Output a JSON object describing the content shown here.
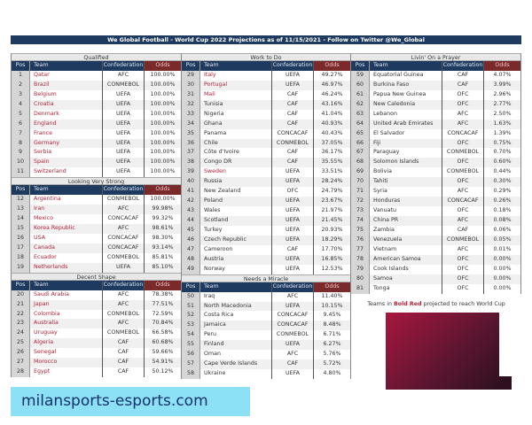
{
  "title": "We Global Football - World Cup 2022 Projections as of 11/15/2021 - Follow on Twitter @We_Global",
  "columns": {
    "pos": "Pos",
    "team": "Team",
    "confederation": "Confederation",
    "odds": "Odds"
  },
  "colors": {
    "header": "#1f3a5f",
    "odds_header": "#7a2a2a",
    "projected_team": "#b3233a"
  },
  "legend": {
    "prefix": "Teams in ",
    "highlight": "Bold Red",
    "suffix": " projected to reach World Cup"
  },
  "watermark": "milansports-esports.com",
  "panels": [
    [
      {
        "title": "Qualified",
        "rows": [
          [
            1,
            "Qatar",
            "AFC",
            "100.00%",
            true
          ],
          [
            2,
            "Brazil",
            "CONMEBOL",
            "100.00%",
            true
          ],
          [
            3,
            "Belgium",
            "UEFA",
            "100.00%",
            true
          ],
          [
            4,
            "Croatia",
            "UEFA",
            "100.00%",
            true
          ],
          [
            5,
            "Denmark",
            "UEFA",
            "100.00%",
            true
          ],
          [
            6,
            "England",
            "UEFA",
            "100.00%",
            true
          ],
          [
            7,
            "France",
            "UEFA",
            "100.00%",
            true
          ],
          [
            8,
            "Germany",
            "UEFA",
            "100.00%",
            true
          ],
          [
            9,
            "Serbia",
            "UEFA",
            "100.00%",
            true
          ],
          [
            10,
            "Spain",
            "UEFA",
            "100.00%",
            true
          ],
          [
            11,
            "Switzerland",
            "UEFA",
            "100.00%",
            true
          ]
        ]
      },
      {
        "title": "Looking Very Strong",
        "rows": [
          [
            12,
            "Argentina",
            "CONMEBOL",
            "100.00%",
            true
          ],
          [
            13,
            "Iran",
            "AFC",
            "99.98%",
            true
          ],
          [
            14,
            "Mexico",
            "CONCACAF",
            "99.32%",
            true
          ],
          [
            15,
            "Korea Republic",
            "AFC",
            "98.61%",
            true
          ],
          [
            16,
            "USA",
            "CONCACAF",
            "98.30%",
            true
          ],
          [
            17,
            "Canada",
            "CONCACAF",
            "93.14%",
            true
          ],
          [
            18,
            "Ecuador",
            "CONMEBOL",
            "85.81%",
            true
          ],
          [
            19,
            "Netherlands",
            "UEFA",
            "85.10%",
            true
          ]
        ]
      },
      {
        "title": "Decent Shape",
        "rows": [
          [
            20,
            "Saudi Arabia",
            "AFC",
            "78.38%",
            true
          ],
          [
            21,
            "Japan",
            "AFC",
            "77.51%",
            true
          ],
          [
            22,
            "Colombia",
            "CONMEBOL",
            "72.59%",
            true
          ],
          [
            23,
            "Australia",
            "AFC",
            "70.84%",
            true
          ],
          [
            24,
            "Uruguay",
            "CONMEBOL",
            "66.58%",
            true
          ],
          [
            25,
            "Algeria",
            "CAF",
            "60.68%",
            true
          ],
          [
            26,
            "Senegal",
            "CAF",
            "59.66%",
            true
          ],
          [
            27,
            "Morocco",
            "CAF",
            "54.91%",
            true
          ],
          [
            28,
            "Egypt",
            "CAF",
            "50.12%",
            true
          ]
        ]
      }
    ],
    [
      {
        "title": "Work to Do",
        "rows": [
          [
            29,
            "Italy",
            "UEFA",
            "49.27%",
            true
          ],
          [
            30,
            "Portugal",
            "UEFA",
            "46.97%",
            true
          ],
          [
            31,
            "Mali",
            "CAF",
            "46.24%",
            true
          ],
          [
            32,
            "Tunisia",
            "CAF",
            "43.16%",
            false
          ],
          [
            33,
            "Nigeria",
            "CAF",
            "41.04%",
            false
          ],
          [
            34,
            "Ghana",
            "CAF",
            "40.93%",
            false
          ],
          [
            35,
            "Panama",
            "CONCACAF",
            "40.43%",
            false
          ],
          [
            36,
            "Chile",
            "CONMEBOL",
            "37.05%",
            false
          ],
          [
            37,
            "Côte d'Ivoire",
            "CAF",
            "36.17%",
            false
          ],
          [
            38,
            "Congo DR",
            "CAF",
            "35.55%",
            false
          ],
          [
            39,
            "Sweden",
            "UEFA",
            "33.51%",
            true
          ],
          [
            40,
            "Russia",
            "UEFA",
            "28.24%",
            false
          ],
          [
            41,
            "New Zealand",
            "OFC",
            "24.79%",
            false
          ],
          [
            42,
            "Poland",
            "UEFA",
            "23.67%",
            false
          ],
          [
            43,
            "Wales",
            "UEFA",
            "21.97%",
            false
          ],
          [
            44,
            "Scotland",
            "UEFA",
            "21.45%",
            false
          ],
          [
            45,
            "Turkey",
            "UEFA",
            "20.93%",
            false
          ],
          [
            46,
            "Czech Republic",
            "UEFA",
            "18.29%",
            false
          ],
          [
            47,
            "Cameroon",
            "CAF",
            "17.70%",
            false
          ],
          [
            48,
            "Austria",
            "UEFA",
            "16.85%",
            false
          ],
          [
            49,
            "Norway",
            "UEFA",
            "12.53%",
            false
          ]
        ]
      },
      {
        "title": "Needs a Miracle",
        "rows": [
          [
            50,
            "Iraq",
            "AFC",
            "11.40%",
            false
          ],
          [
            51,
            "North Macedonia",
            "UEFA",
            "10.15%",
            false
          ],
          [
            52,
            "Costa Rica",
            "CONCACAF",
            "9.45%",
            false
          ],
          [
            53,
            "Jamaica",
            "CONCACAF",
            "8.48%",
            false
          ],
          [
            54,
            "Peru",
            "CONMEBOL",
            "6.71%",
            false
          ],
          [
            55,
            "Finland",
            "UEFA",
            "6.27%",
            false
          ],
          [
            56,
            "Oman",
            "AFC",
            "5.76%",
            false
          ],
          [
            57,
            "Cape Verde Islands",
            "CAF",
            "5.72%",
            false
          ],
          [
            58,
            "Ukraine",
            "UEFA",
            "4.80%",
            false
          ]
        ]
      }
    ],
    [
      {
        "title": "Livin' On a Prayer",
        "rows": [
          [
            59,
            "Equatorial Guinea",
            "CAF",
            "4.07%",
            false
          ],
          [
            60,
            "Burkina Faso",
            "CAF",
            "3.99%",
            false
          ],
          [
            61,
            "Papua New Guinea",
            "OFC",
            "2.96%",
            false
          ],
          [
            62,
            "New Caledonia",
            "OFC",
            "2.77%",
            false
          ],
          [
            63,
            "Lebanon",
            "AFC",
            "2.50%",
            false
          ],
          [
            64,
            "United Arab Emirates",
            "AFC",
            "1.63%",
            false
          ],
          [
            65,
            "El Salvador",
            "CONCACAF",
            "1.39%",
            false
          ],
          [
            66,
            "Fiji",
            "OFC",
            "0.75%",
            false
          ],
          [
            67,
            "Paraguay",
            "CONMEBOL",
            "0.70%",
            false
          ],
          [
            68,
            "Solomon Islands",
            "OFC",
            "0.60%",
            false
          ],
          [
            69,
            "Bolivia",
            "CONMEBOL",
            "0.44%",
            false
          ],
          [
            70,
            "Tahiti",
            "OFC",
            "0.30%",
            false
          ],
          [
            71,
            "Syria",
            "AFC",
            "0.29%",
            false
          ],
          [
            72,
            "Honduras",
            "CONCACAF",
            "0.26%",
            false
          ],
          [
            73,
            "Vanuatu",
            "OFC",
            "0.18%",
            false
          ],
          [
            74,
            "China PR",
            "AFC",
            "0.08%",
            false
          ],
          [
            75,
            "Zambia",
            "CAF",
            "0.06%",
            false
          ],
          [
            76,
            "Venezuela",
            "CONMEBOL",
            "0.05%",
            false
          ],
          [
            77,
            "Vietnam",
            "AFC",
            "0.01%",
            false
          ],
          [
            78,
            "American Samoa",
            "OFC",
            "0.00%",
            false
          ],
          [
            79,
            "Cook Islands",
            "OFC",
            "0.00%",
            false
          ],
          [
            80,
            "Samoa",
            "OFC",
            "0.00%",
            false
          ],
          [
            81,
            "Tonga",
            "OFC",
            "0.00%",
            false
          ]
        ]
      }
    ]
  ]
}
